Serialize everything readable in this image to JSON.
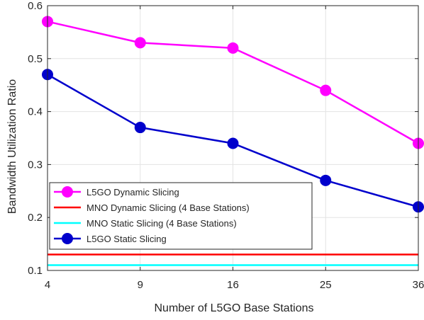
{
  "chart_data": {
    "type": "line",
    "xlabel": "Number of L5GO Base Stations",
    "ylabel": "Bandwidth Utilization Ratio",
    "categories": [
      "4",
      "9",
      "16",
      "25",
      "36"
    ],
    "ylim": [
      0.1,
      0.6
    ],
    "yticks": [
      "0.1",
      "0.2",
      "0.3",
      "0.4",
      "0.5",
      "0.6"
    ],
    "grid": true,
    "legend_position": "bottom-left",
    "series": [
      {
        "name": "L5GO Dynamic Slicing",
        "color": "#ff00ff",
        "marker": "circle",
        "values": [
          0.57,
          0.53,
          0.52,
          0.44,
          0.34
        ]
      },
      {
        "name": "MNO Dynamic Slicing (4 Base Stations)",
        "color": "#ff0000",
        "marker": "none",
        "values": [
          0.13,
          0.13,
          0.13,
          0.13,
          0.13
        ]
      },
      {
        "name": "MNO Static Slicing (4 Base Stations)",
        "color": "#00ffff",
        "marker": "none",
        "values": [
          0.11,
          0.11,
          0.11,
          0.11,
          0.11
        ]
      },
      {
        "name": "L5GO Static Slicing",
        "color": "#0000cc",
        "marker": "circle",
        "values": [
          0.47,
          0.37,
          0.34,
          0.27,
          0.22
        ]
      }
    ]
  }
}
